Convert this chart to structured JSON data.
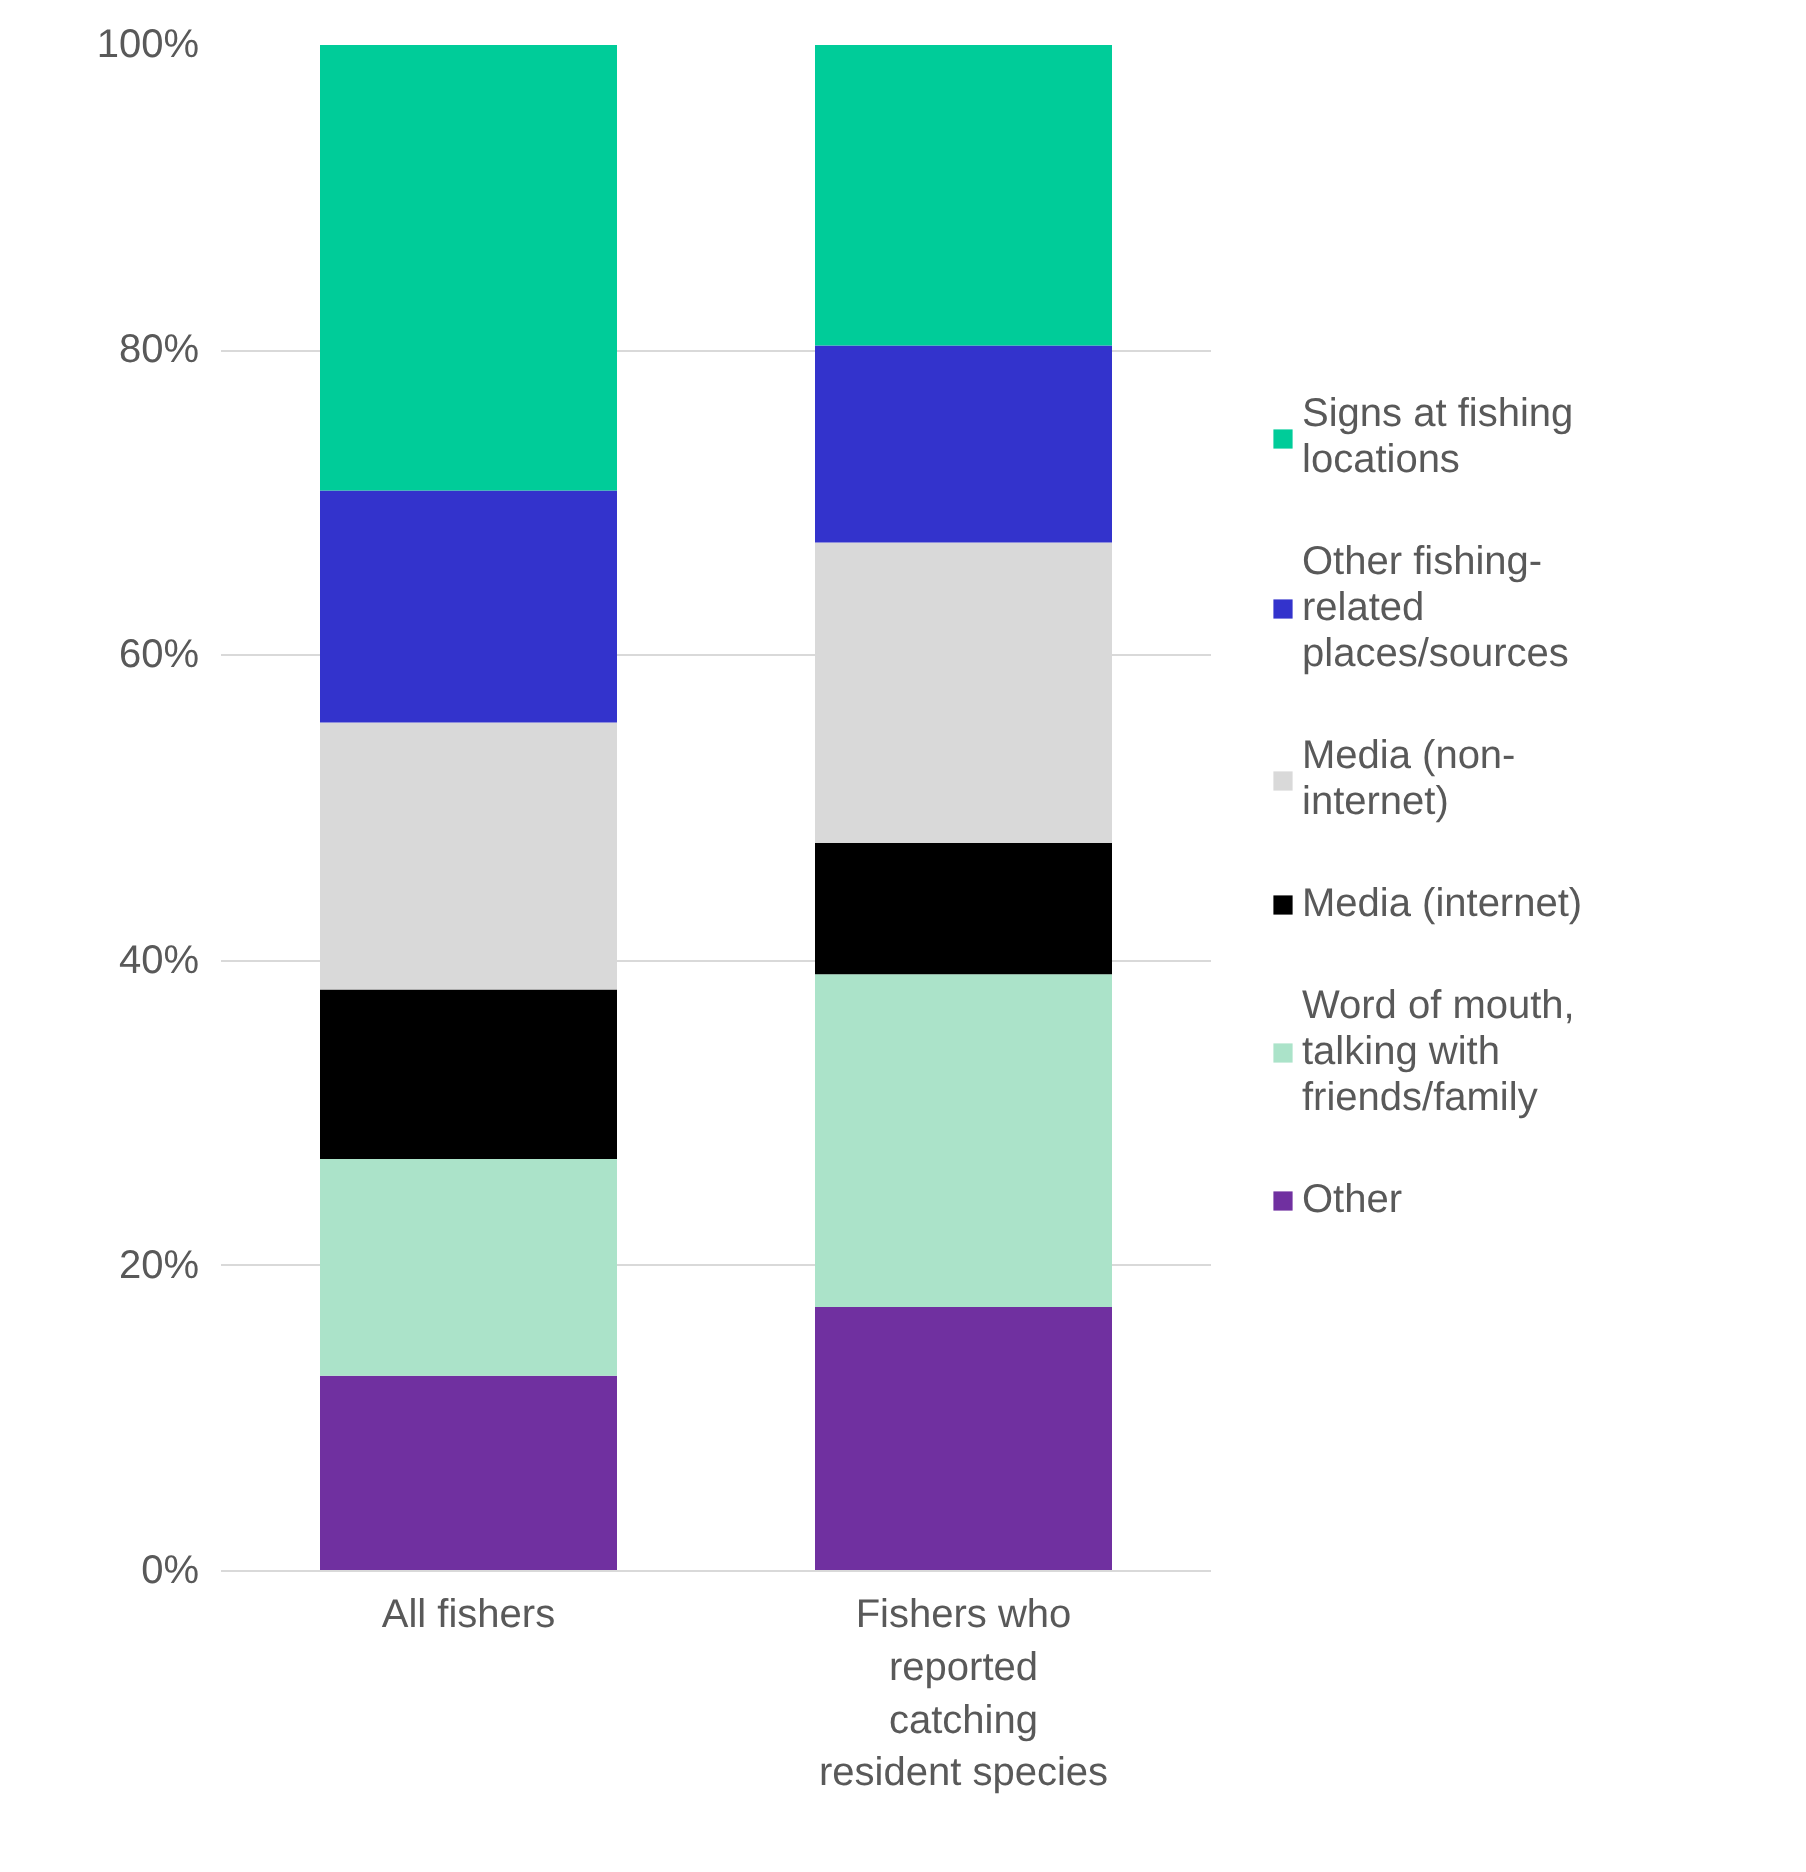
{
  "chart_data": {
    "type": "bar",
    "stacked": true,
    "categories": [
      "All fishers",
      "Fishers who reported catching resident species"
    ],
    "series": [
      {
        "name": "Other",
        "color": "#7030a0",
        "values": [
          12.8,
          17.3
        ]
      },
      {
        "name": "Word of mouth, talking with friends/family",
        "color": "#abe3c9",
        "values": [
          14.2,
          21.8
        ]
      },
      {
        "name": "Media (internet)",
        "color": "#000000",
        "values": [
          11.1,
          8.6
        ]
      },
      {
        "name": "Media (non-internet)",
        "color": "#d9d9d9",
        "values": [
          17.5,
          19.7
        ]
      },
      {
        "name": "Other fishing-related places/sources",
        "color": "#3333cc",
        "values": [
          15.2,
          12.9
        ]
      },
      {
        "name": "Signs at fishing locations",
        "color": "#00cc99",
        "values": [
          29.2,
          19.7
        ]
      }
    ],
    "ylim": [
      0,
      100
    ],
    "yticks": [
      {
        "value": 0,
        "label": "0%"
      },
      {
        "value": 20,
        "label": "20%"
      },
      {
        "value": 40,
        "label": "40%"
      },
      {
        "value": 60,
        "label": "60%"
      },
      {
        "value": 80,
        "label": "80%"
      },
      {
        "value": 100,
        "label": "100%"
      }
    ],
    "grid": "y",
    "legend": "right"
  }
}
